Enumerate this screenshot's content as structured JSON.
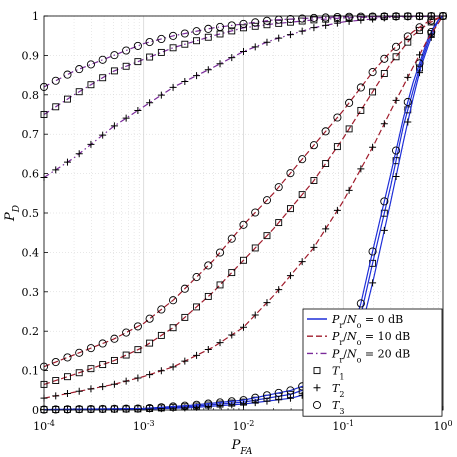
{
  "chart_data": {
    "type": "line",
    "xlabel": "P_FA",
    "ylabel": "P_D",
    "x_scale": "log",
    "xlim": [
      0.0001,
      1
    ],
    "ylim": [
      0,
      1
    ],
    "grid": true,
    "legend_position": "bottom-right",
    "x_tick_labels": [
      {
        "base": "10",
        "exp": "-4",
        "value": 0.0001
      },
      {
        "base": "10",
        "exp": "-3",
        "value": 0.001
      },
      {
        "base": "10",
        "exp": "-2",
        "value": 0.01
      },
      {
        "base": "10",
        "exp": "-1",
        "value": 0.1
      },
      {
        "base": "10",
        "exp": "0",
        "value": 1
      }
    ],
    "y_tick_labels": [
      "0",
      "0.1",
      "0.2",
      "0.3",
      "0.4",
      "0.5",
      "0.6",
      "0.7",
      "0.8",
      "0.9",
      "1"
    ],
    "line_styles": [
      {
        "label": "P_r/N_o = 0 dB",
        "color": "#1f2fd8",
        "dash": "solid"
      },
      {
        "label": "P_r/N_o = 10 dB",
        "color": "#a01c2c",
        "dash": "dashed"
      },
      {
        "label": "P_r/N_o = 20 dB",
        "color": "#7a2a9a",
        "dash": "dashdot"
      }
    ],
    "marker_styles": [
      {
        "label": "T_1",
        "marker": "square"
      },
      {
        "label": "T_2",
        "marker": "plus"
      },
      {
        "label": "T_3",
        "marker": "circle"
      }
    ],
    "series": [
      {
        "snr_db": 0,
        "detector": "T1",
        "color": "#1f2fd8",
        "dash": "solid",
        "marker": "square",
        "points": [
          [
            0.0001,
            0.001
          ],
          [
            0.001,
            0.003
          ],
          [
            0.003,
            0.009
          ],
          [
            0.01,
            0.02
          ],
          [
            0.03,
            0.04
          ],
          [
            0.05,
            0.06
          ],
          [
            0.1,
            0.11
          ],
          [
            0.15,
            0.24
          ],
          [
            0.2,
            0.38
          ],
          [
            0.3,
            0.57
          ],
          [
            0.4,
            0.72
          ],
          [
            0.5,
            0.81
          ],
          [
            0.6,
            0.88
          ],
          [
            0.7,
            0.93
          ],
          [
            0.8,
            0.97
          ],
          [
            0.9,
            0.99
          ],
          [
            1,
            1
          ]
        ]
      },
      {
        "snr_db": 0,
        "detector": "T2",
        "color": "#1f2fd8",
        "dash": "solid",
        "marker": "plus",
        "points": [
          [
            0.0001,
            0.0008
          ],
          [
            0.001,
            0.002
          ],
          [
            0.003,
            0.006
          ],
          [
            0.01,
            0.015
          ],
          [
            0.03,
            0.03
          ],
          [
            0.05,
            0.045
          ],
          [
            0.1,
            0.09
          ],
          [
            0.15,
            0.2
          ],
          [
            0.2,
            0.33
          ],
          [
            0.3,
            0.53
          ],
          [
            0.4,
            0.68
          ],
          [
            0.5,
            0.79
          ],
          [
            0.6,
            0.87
          ],
          [
            0.7,
            0.92
          ],
          [
            0.8,
            0.96
          ],
          [
            0.9,
            0.99
          ],
          [
            1,
            1
          ]
        ]
      },
      {
        "snr_db": 0,
        "detector": "T3",
        "color": "#1f2fd8",
        "dash": "solid",
        "marker": "circle",
        "points": [
          [
            0.0001,
            0.001
          ],
          [
            0.001,
            0.004
          ],
          [
            0.003,
            0.012
          ],
          [
            0.01,
            0.025
          ],
          [
            0.03,
            0.05
          ],
          [
            0.05,
            0.07
          ],
          [
            0.1,
            0.13
          ],
          [
            0.15,
            0.27
          ],
          [
            0.2,
            0.41
          ],
          [
            0.3,
            0.6
          ],
          [
            0.4,
            0.74
          ],
          [
            0.5,
            0.83
          ],
          [
            0.6,
            0.89
          ],
          [
            0.7,
            0.94
          ],
          [
            0.8,
            0.97
          ],
          [
            0.9,
            0.99
          ],
          [
            1,
            1
          ]
        ]
      },
      {
        "snr_db": 10,
        "detector": "T1",
        "color": "#a01c2c",
        "dash": "dashed",
        "marker": "square",
        "points": [
          [
            0.0001,
            0.065
          ],
          [
            0.0002,
            0.09
          ],
          [
            0.0005,
            0.125
          ],
          [
            0.001,
            0.16
          ],
          [
            0.002,
            0.21
          ],
          [
            0.005,
            0.3
          ],
          [
            0.01,
            0.38
          ],
          [
            0.02,
            0.46
          ],
          [
            0.05,
            0.58
          ],
          [
            0.1,
            0.69
          ],
          [
            0.2,
            0.81
          ],
          [
            0.3,
            0.88
          ],
          [
            0.5,
            0.95
          ],
          [
            0.7,
            0.98
          ],
          [
            1,
            1
          ]
        ]
      },
      {
        "snr_db": 10,
        "detector": "T2",
        "color": "#a01c2c",
        "dash": "dashed",
        "marker": "plus",
        "points": [
          [
            0.0001,
            0.03
          ],
          [
            0.0002,
            0.045
          ],
          [
            0.0005,
            0.065
          ],
          [
            0.001,
            0.085
          ],
          [
            0.002,
            0.11
          ],
          [
            0.005,
            0.16
          ],
          [
            0.01,
            0.21
          ],
          [
            0.02,
            0.29
          ],
          [
            0.05,
            0.41
          ],
          [
            0.1,
            0.53
          ],
          [
            0.2,
            0.67
          ],
          [
            0.3,
            0.76
          ],
          [
            0.5,
            0.87
          ],
          [
            0.7,
            0.94
          ],
          [
            1,
            1
          ]
        ]
      },
      {
        "snr_db": 10,
        "detector": "T3",
        "color": "#a01c2c",
        "dash": "dashed",
        "marker": "circle",
        "points": [
          [
            0.0001,
            0.11
          ],
          [
            0.0002,
            0.14
          ],
          [
            0.0005,
            0.18
          ],
          [
            0.001,
            0.22
          ],
          [
            0.002,
            0.28
          ],
          [
            0.005,
            0.38
          ],
          [
            0.01,
            0.47
          ],
          [
            0.02,
            0.55
          ],
          [
            0.05,
            0.67
          ],
          [
            0.1,
            0.76
          ],
          [
            0.2,
            0.86
          ],
          [
            0.3,
            0.91
          ],
          [
            0.5,
            0.96
          ],
          [
            0.7,
            0.985
          ],
          [
            1,
            1
          ]
        ]
      },
      {
        "snr_db": 20,
        "detector": "T1",
        "color": "#7a2a9a",
        "dash": "dashdot",
        "marker": "square",
        "points": [
          [
            0.0001,
            0.75
          ],
          [
            0.0002,
            0.8
          ],
          [
            0.0005,
            0.86
          ],
          [
            0.001,
            0.89
          ],
          [
            0.002,
            0.92
          ],
          [
            0.005,
            0.95
          ],
          [
            0.01,
            0.97
          ],
          [
            0.02,
            0.98
          ],
          [
            0.05,
            0.99
          ],
          [
            0.1,
            0.995
          ],
          [
            0.3,
            0.999
          ],
          [
            1,
            1
          ]
        ]
      },
      {
        "snr_db": 20,
        "detector": "T2",
        "color": "#7a2a9a",
        "dash": "dashdot",
        "marker": "plus",
        "points": [
          [
            0.0001,
            0.59
          ],
          [
            0.0002,
            0.64
          ],
          [
            0.0005,
            0.72
          ],
          [
            0.001,
            0.77
          ],
          [
            0.002,
            0.82
          ],
          [
            0.005,
            0.87
          ],
          [
            0.01,
            0.91
          ],
          [
            0.02,
            0.94
          ],
          [
            0.05,
            0.97
          ],
          [
            0.1,
            0.985
          ],
          [
            0.3,
            0.997
          ],
          [
            1,
            1
          ]
        ]
      },
      {
        "snr_db": 20,
        "detector": "T3",
        "color": "#7a2a9a",
        "dash": "dashdot",
        "marker": "circle",
        "points": [
          [
            0.0001,
            0.82
          ],
          [
            0.0002,
            0.86
          ],
          [
            0.0005,
            0.9
          ],
          [
            0.001,
            0.93
          ],
          [
            0.002,
            0.95
          ],
          [
            0.005,
            0.97
          ],
          [
            0.01,
            0.98
          ],
          [
            0.02,
            0.99
          ],
          [
            0.05,
            0.995
          ],
          [
            0.1,
            0.998
          ],
          [
            0.3,
            0.999
          ],
          [
            1,
            1
          ]
        ]
      }
    ]
  }
}
